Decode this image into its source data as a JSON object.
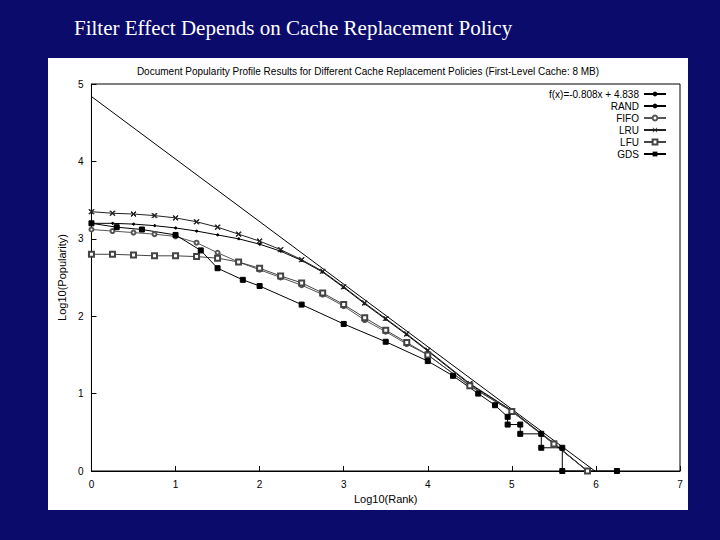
{
  "slide": {
    "title": "Filter Effect Depends on Cache Replacement Policy"
  },
  "chart_data": {
    "type": "line",
    "title": "Document Popularity Profile Results for Different Cache Replacement Policies (First-Level Cache: 8 MB)",
    "x_label": "Log10(Rank)",
    "y_label": "Log10(Popularity)",
    "xlim": [
      0,
      7
    ],
    "xticks": [
      0,
      1,
      2,
      3,
      4,
      5,
      6,
      7
    ],
    "ylim": [
      0,
      5
    ],
    "yticks": [
      0,
      1,
      2,
      3,
      4,
      5
    ],
    "grid": false,
    "legend": "upper right",
    "series": [
      {
        "name": "f(x)=-0.808x + 4.838",
        "color": "#000000",
        "marker": "none",
        "line_style": "solid",
        "x": [
          0,
          5.988
        ],
        "values": [
          4.838,
          0
        ]
      },
      {
        "name": "RAND",
        "color": "#000000",
        "marker": "dot",
        "line_style": "solid",
        "x": [
          0,
          0.25,
          0.5,
          0.75,
          1,
          1.25,
          1.5,
          1.75,
          2,
          2.25,
          2.5,
          2.75,
          3,
          3.25,
          3.5,
          3.75,
          4,
          4.5,
          5,
          5.5,
          5.9
        ],
        "values": [
          3.2,
          3.2,
          3.19,
          3.17,
          3.14,
          3.1,
          3.05,
          3.0,
          2.93,
          2.84,
          2.72,
          2.57,
          2.37,
          2.16,
          1.96,
          1.76,
          1.55,
          1.12,
          0.78,
          0.35,
          0
        ]
      },
      {
        "name": "FIFO",
        "color": "#555555",
        "marker": "open_circle",
        "line_style": "solid",
        "x": [
          0,
          0.25,
          0.5,
          0.75,
          1,
          1.25,
          1.5,
          1.75,
          2,
          2.25,
          2.5,
          2.75,
          3,
          3.25,
          3.5,
          3.75,
          4,
          4.5,
          5,
          5.5,
          5.9
        ],
        "values": [
          3.12,
          3.1,
          3.08,
          3.06,
          3.03,
          2.95,
          2.82,
          2.7,
          2.6,
          2.5,
          2.4,
          2.28,
          2.13,
          1.95,
          1.8,
          1.64,
          1.5,
          1.1,
          0.77,
          0.35,
          0
        ]
      },
      {
        "name": "LRU",
        "color": "#222222",
        "marker": "x",
        "line_style": "solid",
        "x": [
          0,
          0.25,
          0.5,
          0.75,
          1,
          1.25,
          1.5,
          1.75,
          2,
          2.25,
          2.5,
          2.75,
          3,
          3.25,
          3.5,
          3.75,
          4,
          4.5,
          5,
          5.5,
          5.9
        ],
        "values": [
          3.35,
          3.33,
          3.32,
          3.3,
          3.27,
          3.22,
          3.15,
          3.06,
          2.97,
          2.86,
          2.73,
          2.58,
          2.38,
          2.17,
          1.97,
          1.77,
          1.56,
          1.13,
          0.78,
          0.36,
          0
        ]
      },
      {
        "name": "LFU",
        "color": "#444444",
        "marker": "open_square",
        "line_style": "solid",
        "x": [
          0,
          0.25,
          0.5,
          0.75,
          1,
          1.25,
          1.5,
          1.75,
          2,
          2.25,
          2.5,
          2.75,
          3,
          3.25,
          3.5,
          3.75,
          4,
          4.5,
          5,
          5.5,
          5.9
        ],
        "values": [
          2.8,
          2.8,
          2.79,
          2.78,
          2.78,
          2.77,
          2.75,
          2.7,
          2.62,
          2.52,
          2.43,
          2.3,
          2.15,
          1.98,
          1.82,
          1.66,
          1.5,
          1.1,
          0.77,
          0.35,
          0
        ]
      },
      {
        "name": "GDS",
        "color": "#000000",
        "marker": "square",
        "line_style": "solid",
        "x": [
          0,
          0.3,
          0.6,
          1,
          1.3,
          1.5,
          1.8,
          2,
          2.5,
          3,
          3.5,
          4,
          4.3,
          4.6,
          4.8,
          4.95,
          4.95,
          5.1,
          5.1,
          5.35,
          5.35,
          5.6,
          5.6,
          6.25
        ],
        "values": [
          3.2,
          3.15,
          3.12,
          3.05,
          2.85,
          2.62,
          2.47,
          2.39,
          2.15,
          1.9,
          1.67,
          1.42,
          1.23,
          1.0,
          0.85,
          0.7,
          0.6,
          0.6,
          0.48,
          0.48,
          0.3,
          0.3,
          0,
          0
        ]
      }
    ]
  }
}
